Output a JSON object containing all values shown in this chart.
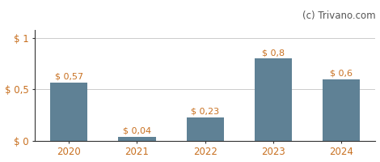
{
  "categories": [
    "2020",
    "2021",
    "2022",
    "2023",
    "2024"
  ],
  "values": [
    0.57,
    0.04,
    0.23,
    0.8,
    0.6
  ],
  "bar_color": "#5f8195",
  "bar_labels": [
    "$ 0,57",
    "$ 0,04",
    "$ 0,23",
    "$ 0,8",
    "$ 0,6"
  ],
  "yticks": [
    0,
    0.5,
    1.0
  ],
  "ytick_labels": [
    "$ 0",
    "$ 0,5",
    "$ 1"
  ],
  "ylim": [
    0,
    1.08
  ],
  "watermark": "(c) Trivano.com",
  "background_color": "#ffffff",
  "grid_color": "#cccccc",
  "bar_label_fontsize": 8.0,
  "axis_label_fontsize": 8.5,
  "watermark_fontsize": 8.5,
  "tick_label_color": "#c87020",
  "spine_color": "#333333"
}
